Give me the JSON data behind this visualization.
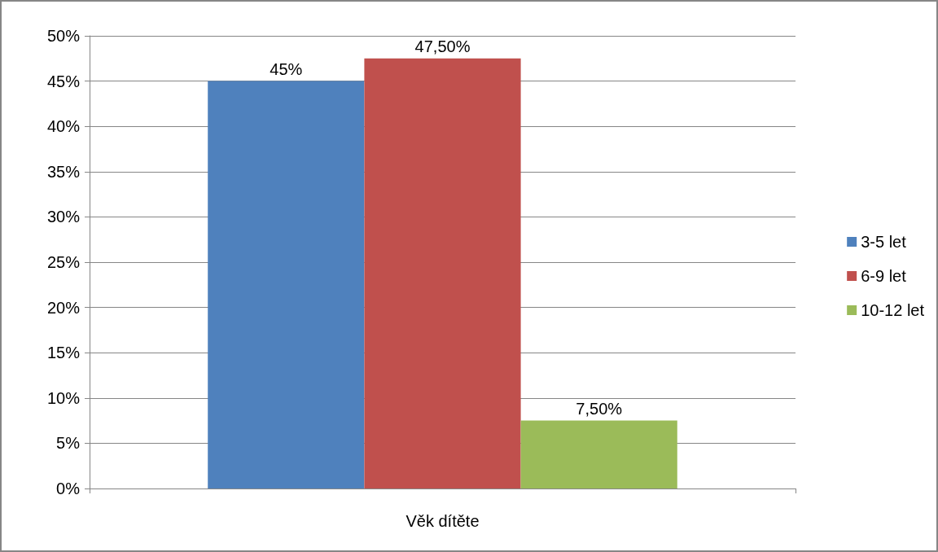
{
  "chart_data": {
    "type": "bar",
    "categories": [
      "Věk dítěte"
    ],
    "series": [
      {
        "name": "3-5 let",
        "color": "#4f81bd",
        "values": [
          45
        ],
        "value_labels": [
          "45%"
        ]
      },
      {
        "name": "6-9 let",
        "color": "#c0504d",
        "values": [
          47.5
        ],
        "value_labels": [
          "47,50%"
        ]
      },
      {
        "name": "10-12 let",
        "color": "#9bbb59",
        "values": [
          7.5
        ],
        "value_labels": [
          "7,50%"
        ]
      }
    ],
    "ylim": [
      0,
      50
    ],
    "yticks": [
      {
        "value": 0,
        "label": "0%"
      },
      {
        "value": 5,
        "label": "5%"
      },
      {
        "value": 10,
        "label": "10%"
      },
      {
        "value": 15,
        "label": "15%"
      },
      {
        "value": 20,
        "label": "20%"
      },
      {
        "value": 25,
        "label": "25%"
      },
      {
        "value": 30,
        "label": "30%"
      },
      {
        "value": 35,
        "label": "35%"
      },
      {
        "value": 40,
        "label": "40%"
      },
      {
        "value": 45,
        "label": "45%"
      },
      {
        "value": 50,
        "label": "50%"
      }
    ],
    "grid": "y",
    "legend": "right"
  }
}
